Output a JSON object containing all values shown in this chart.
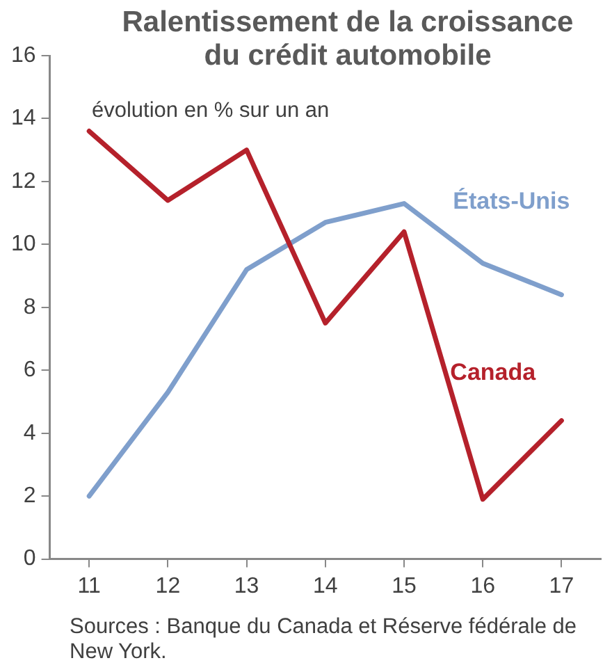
{
  "chart_data": {
    "type": "line",
    "title": "Ralentissement de la croissance\ndu crédit automobile",
    "subtitle": "évolution en % sur un an",
    "categories": [
      "11",
      "12",
      "13",
      "14",
      "15",
      "16",
      "17"
    ],
    "series": [
      {
        "name": "Canada",
        "color": "#b5212b",
        "values": [
          13.6,
          11.4,
          13.0,
          7.5,
          10.4,
          1.9,
          4.4
        ]
      },
      {
        "name": "États-Unis",
        "color": "#7f9fcc",
        "values": [
          2.0,
          5.3,
          9.2,
          10.7,
          11.3,
          9.4,
          8.4
        ]
      }
    ],
    "ylim": [
      0,
      16
    ],
    "yticks": [
      0,
      2,
      4,
      6,
      8,
      10,
      12,
      14,
      16
    ],
    "grid": false,
    "legend": false,
    "marker": "none",
    "line_style": "solid",
    "annotations": [
      "Sources : Banque du Canada et Réserve fédérale de New York."
    ]
  }
}
